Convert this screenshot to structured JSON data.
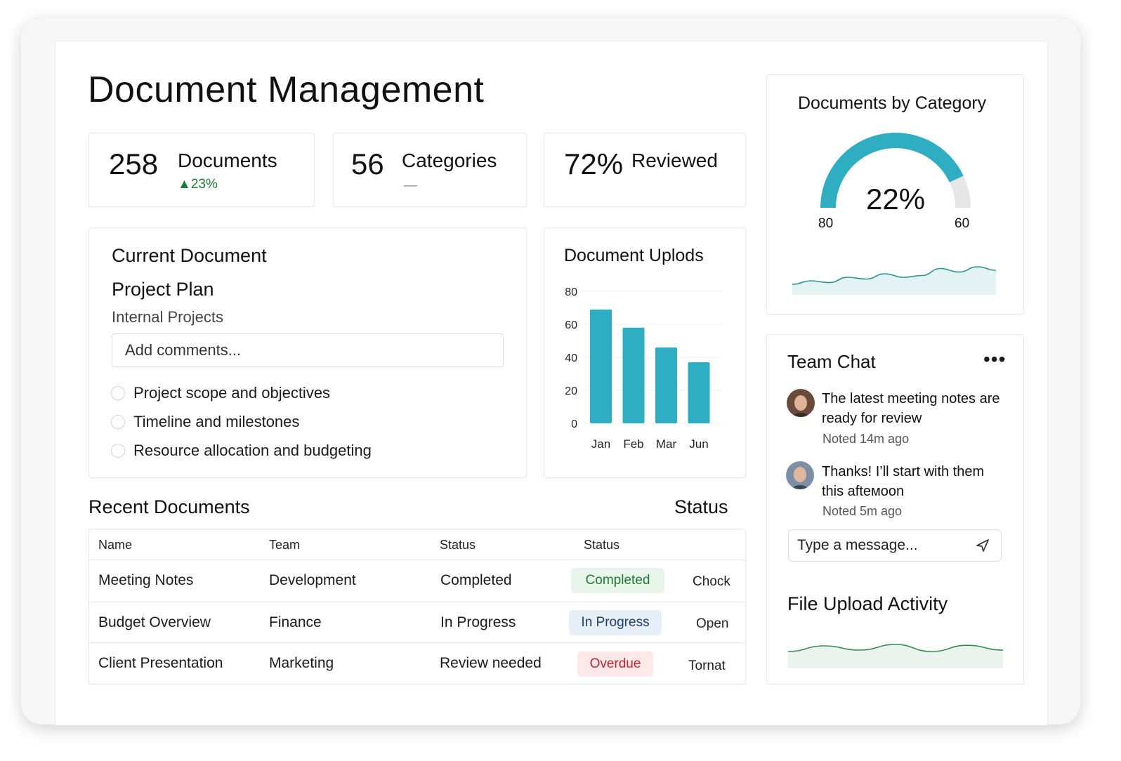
{
  "page": {
    "title": "Document Management"
  },
  "stats": [
    {
      "value": "258",
      "label": "Documents",
      "sub": "23%",
      "trend": "up"
    },
    {
      "value": "56",
      "label": "Categories",
      "sub": "—",
      "trend": "none"
    },
    {
      "value": "72%",
      "label": "Reviewed",
      "sub": "",
      "trend": "none"
    }
  ],
  "current_document": {
    "heading": "Current Document",
    "name": "Project Plan",
    "category": "Internal Projects",
    "comment_placeholder": "Add comments...",
    "checklist": [
      {
        "label": "Project scope and objectives",
        "checked": false
      },
      {
        "label": "Timeline and milestones",
        "checked": false
      },
      {
        "label": "Resource allocation and budgeting",
        "checked": false
      }
    ]
  },
  "uploads_chart": {
    "heading": "Document Uplods",
    "y_ticks": [
      "80",
      "60",
      "40",
      "20",
      "0"
    ]
  },
  "category_chart": {
    "heading": "Documents by Category",
    "center_label": "22%",
    "left_label": "80",
    "right_label": "60"
  },
  "chart_data": [
    {
      "type": "bar",
      "title": "Document Uplods",
      "categories": [
        "Jan",
        "Feb",
        "Mar",
        "Jun"
      ],
      "values": [
        69,
        58,
        46,
        37
      ],
      "ylim": [
        0,
        80
      ],
      "yticks": [
        0,
        20,
        40,
        60,
        80
      ],
      "grid": true,
      "color": "#2eaec0"
    },
    {
      "type": "pie",
      "title": "Documents by Category",
      "values": [
        86,
        14
      ],
      "center_label": "22%",
      "colors": [
        "#2eaec0",
        "#e6e6e6"
      ],
      "trend": [
        0.3,
        0.4,
        0.35,
        0.5,
        0.45,
        0.6,
        0.5,
        0.55,
        0.75,
        0.65,
        0.8,
        0.7
      ]
    },
    {
      "type": "area",
      "title": "File Upload Activity",
      "values": [
        0.4,
        0.6,
        0.45,
        0.65,
        0.4,
        0.62,
        0.45
      ],
      "color": "#3a8a4f"
    }
  ],
  "recent_documents": {
    "heading": "Recent Documents",
    "status_heading": "Status",
    "columns": [
      "Name",
      "Team",
      "Status",
      "Status"
    ],
    "rows": [
      {
        "name": "Meeting Notes",
        "team": "Development",
        "status": "Completed",
        "badge": "Completed",
        "badge_kind": "completed",
        "action": "Chock"
      },
      {
        "name": "Budget Overview",
        "team": "Finance",
        "status": "In Progress",
        "badge": "In Progress",
        "badge_kind": "progress",
        "action": "Open"
      },
      {
        "name": "Client Presentation",
        "team": "Marketing",
        "status": "Review needed",
        "badge": "Overdue",
        "badge_kind": "overdue",
        "action": "Tornat"
      }
    ]
  },
  "team_chat": {
    "heading": "Team Chat",
    "more_icon": "more-horizontal-icon",
    "messages": [
      {
        "text": "The latest meeting notes are ready for review",
        "time": "Noted 14m ago"
      },
      {
        "text": "Thanks! I’ll start with them this afteмoon",
        "time": "Noted 5m ago"
      }
    ],
    "input_placeholder": "Type a message...",
    "send_icon": "send-icon"
  },
  "file_activity": {
    "heading": "File Upload Activity"
  },
  "colors": {
    "accent": "#2eaec0",
    "success": "#1e7a34",
    "danger": "#c4232f",
    "info_bg": "#e6eef8"
  }
}
